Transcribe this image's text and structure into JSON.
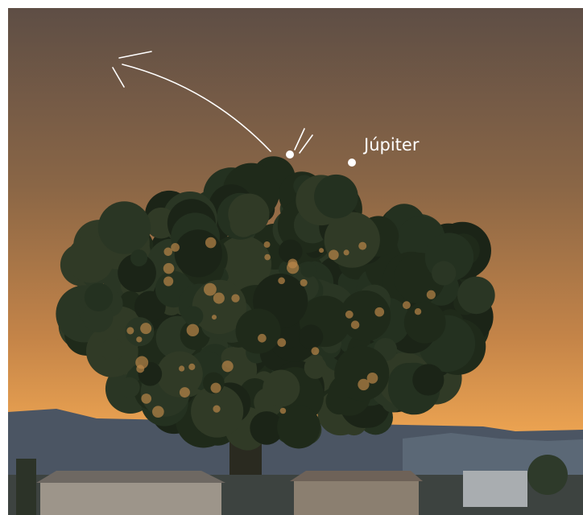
{
  "annotations": {
    "planet_label": "Júpiter"
  }
}
